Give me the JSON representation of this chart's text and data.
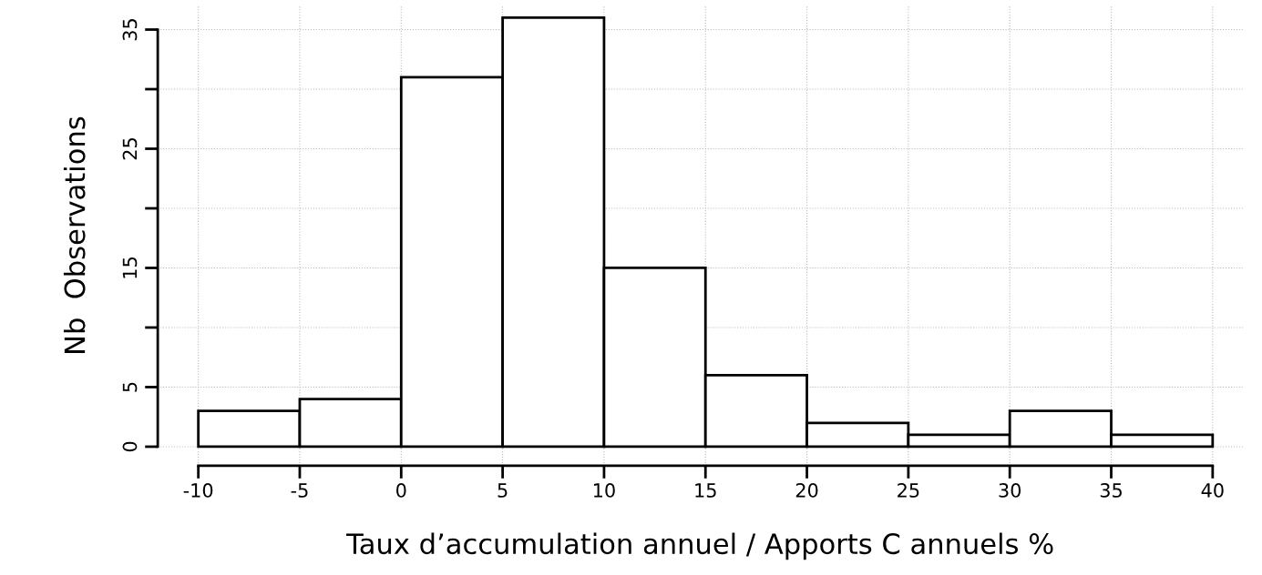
{
  "chart_data": {
    "type": "histogram",
    "xlabel": "Taux d’accumulation annuel / Apports C annuels %",
    "ylabel": "Nb  Observations",
    "bins": [
      -10,
      -5,
      0,
      5,
      10,
      15,
      20,
      25,
      30,
      35,
      40
    ],
    "values": [
      3,
      4,
      31,
      36,
      15,
      6,
      2,
      1,
      3,
      1
    ],
    "color": "#ffffff",
    "xlim": [
      -12,
      41.5
    ],
    "ylim": [
      -1.6,
      37
    ],
    "xticks": [
      -10,
      -5,
      0,
      5,
      10,
      15,
      20,
      25,
      30,
      35,
      40
    ],
    "yticks": [
      0,
      5,
      {
        "value": 10,
        "label": null
      },
      15,
      {
        "value": 20,
        "label": null
      },
      25,
      {
        "value": 30,
        "label": null
      },
      35
    ],
    "grid": true
  }
}
